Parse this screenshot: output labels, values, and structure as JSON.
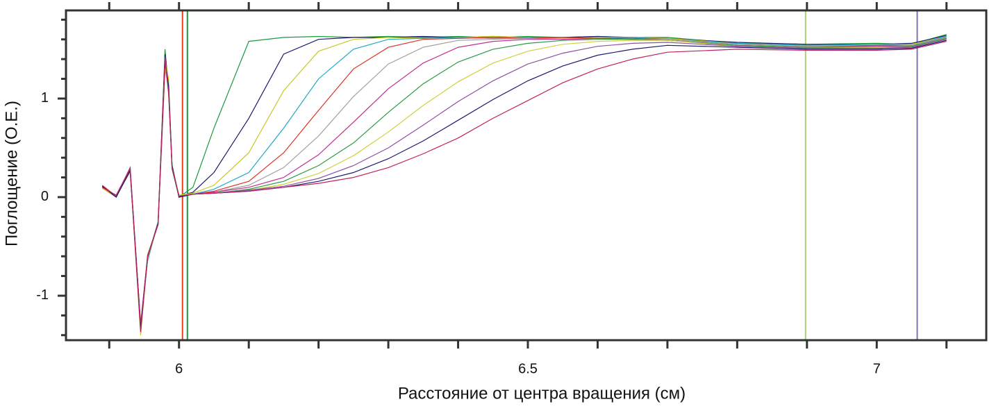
{
  "chart_data": {
    "type": "line",
    "x_label": "Расстояние от центра вращения (см)",
    "y_label": "Поглощение (О.Е.)",
    "x": [
      5.89,
      5.91,
      5.93,
      5.945,
      5.955,
      5.97,
      5.98,
      5.985,
      5.99,
      6.0,
      6.02,
      6.05,
      6.1,
      6.15,
      6.2,
      6.25,
      6.3,
      6.35,
      6.4,
      6.45,
      6.5,
      6.55,
      6.6,
      6.65,
      6.7,
      6.8,
      6.9,
      7.0,
      7.05,
      7.1
    ],
    "series": [
      {
        "color": "#1a9a3a",
        "values": [
          0.1,
          0.02,
          0.28,
          -1.35,
          -0.6,
          -0.27,
          1.5,
          1.1,
          0.3,
          0.0,
          0.1,
          0.7,
          1.58,
          1.62,
          1.63,
          1.62,
          1.63,
          1.62,
          1.63,
          1.62,
          1.63,
          1.62,
          1.63,
          1.62,
          1.62,
          1.56,
          1.55,
          1.56,
          1.55,
          1.65
        ]
      },
      {
        "color": "#1a1a6e",
        "values": [
          0.11,
          0.01,
          0.3,
          -1.3,
          -0.62,
          -0.26,
          1.45,
          1.15,
          0.32,
          0.01,
          0.05,
          0.25,
          0.8,
          1.45,
          1.6,
          1.62,
          1.62,
          1.63,
          1.62,
          1.63,
          1.62,
          1.62,
          1.63,
          1.62,
          1.61,
          1.57,
          1.55,
          1.55,
          1.56,
          1.64
        ]
      },
      {
        "color": "#c8c820",
        "values": [
          0.09,
          0.0,
          0.27,
          -1.4,
          -0.58,
          -0.28,
          1.4,
          1.2,
          0.28,
          0.02,
          0.04,
          0.12,
          0.45,
          1.08,
          1.48,
          1.6,
          1.62,
          1.61,
          1.62,
          1.63,
          1.62,
          1.61,
          1.62,
          1.62,
          1.61,
          1.56,
          1.54,
          1.55,
          1.55,
          1.63
        ]
      },
      {
        "color": "#20a8c8",
        "values": [
          0.1,
          0.02,
          0.29,
          -1.32,
          -0.65,
          -0.25,
          1.35,
          1.05,
          0.33,
          0.0,
          0.03,
          0.08,
          0.25,
          0.7,
          1.2,
          1.5,
          1.6,
          1.61,
          1.62,
          1.61,
          1.62,
          1.62,
          1.61,
          1.62,
          1.6,
          1.56,
          1.54,
          1.55,
          1.54,
          1.63
        ]
      },
      {
        "color": "#e03020",
        "values": [
          0.12,
          0.01,
          0.26,
          -1.28,
          -0.6,
          -0.27,
          1.3,
          1.12,
          0.29,
          0.01,
          0.03,
          0.06,
          0.16,
          0.45,
          0.88,
          1.3,
          1.52,
          1.6,
          1.61,
          1.62,
          1.61,
          1.62,
          1.61,
          1.61,
          1.6,
          1.55,
          1.53,
          1.54,
          1.54,
          1.62
        ]
      },
      {
        "color": "#a0a0a0",
        "values": [
          0.1,
          0.02,
          0.28,
          -1.36,
          -0.63,
          -0.26,
          1.38,
          1.08,
          0.31,
          0.02,
          0.03,
          0.05,
          0.12,
          0.3,
          0.62,
          1.02,
          1.35,
          1.52,
          1.59,
          1.6,
          1.61,
          1.6,
          1.61,
          1.6,
          1.6,
          1.55,
          1.53,
          1.53,
          1.54,
          1.62
        ]
      },
      {
        "color": "#c03090",
        "values": [
          0.11,
          0.0,
          0.3,
          -1.3,
          -0.59,
          -0.28,
          1.42,
          1.1,
          0.3,
          0.01,
          0.03,
          0.05,
          0.1,
          0.2,
          0.43,
          0.76,
          1.1,
          1.36,
          1.52,
          1.58,
          1.6,
          1.6,
          1.61,
          1.6,
          1.59,
          1.54,
          1.52,
          1.53,
          1.53,
          1.61
        ]
      },
      {
        "color": "#2a9a40",
        "values": [
          0.1,
          0.01,
          0.27,
          -1.33,
          -0.61,
          -0.25,
          1.36,
          1.14,
          0.29,
          0.0,
          0.03,
          0.04,
          0.08,
          0.16,
          0.32,
          0.55,
          0.86,
          1.15,
          1.37,
          1.5,
          1.56,
          1.59,
          1.6,
          1.6,
          1.59,
          1.54,
          1.52,
          1.52,
          1.53,
          1.61
        ]
      },
      {
        "color": "#d0d040",
        "values": [
          0.09,
          0.02,
          0.29,
          -1.38,
          -0.62,
          -0.27,
          1.33,
          1.09,
          0.31,
          0.02,
          0.03,
          0.04,
          0.07,
          0.13,
          0.24,
          0.42,
          0.66,
          0.93,
          1.17,
          1.36,
          1.48,
          1.55,
          1.58,
          1.59,
          1.59,
          1.53,
          1.51,
          1.52,
          1.52,
          1.6
        ]
      },
      {
        "color": "#9050a0",
        "values": [
          0.1,
          0.01,
          0.28,
          -1.31,
          -0.6,
          -0.26,
          1.4,
          1.11,
          0.3,
          0.01,
          0.03,
          0.04,
          0.07,
          0.11,
          0.19,
          0.32,
          0.5,
          0.73,
          0.97,
          1.18,
          1.35,
          1.46,
          1.53,
          1.56,
          1.57,
          1.53,
          1.51,
          1.51,
          1.52,
          1.6
        ]
      },
      {
        "color": "#1a1a6e",
        "values": [
          0.11,
          0.0,
          0.27,
          -1.34,
          -0.61,
          -0.27,
          1.37,
          1.13,
          0.32,
          0.0,
          0.03,
          0.04,
          0.06,
          0.1,
          0.16,
          0.25,
          0.39,
          0.57,
          0.78,
          0.99,
          1.18,
          1.33,
          1.44,
          1.5,
          1.54,
          1.52,
          1.5,
          1.5,
          1.51,
          1.59
        ]
      },
      {
        "color": "#c02060",
        "values": [
          0.1,
          0.02,
          0.29,
          -1.37,
          -0.6,
          -0.28,
          1.39,
          1.07,
          0.3,
          0.01,
          0.03,
          0.04,
          0.06,
          0.1,
          0.14,
          0.2,
          0.3,
          0.44,
          0.6,
          0.8,
          0.98,
          1.16,
          1.3,
          1.4,
          1.47,
          1.5,
          1.49,
          1.49,
          1.5,
          1.58
        ]
      }
    ],
    "vlines": [
      {
        "x": 6.005,
        "color": "#e04020"
      },
      {
        "x": 6.012,
        "color": "#1a9a3a"
      },
      {
        "x": 6.898,
        "color": "#a8d070"
      },
      {
        "x": 7.058,
        "color": "#8070b0"
      }
    ],
    "xlim": [
      5.838,
      7.157
    ],
    "ylim": [
      -1.451,
      1.894
    ],
    "xticks": [
      6,
      6.5,
      7
    ],
    "yticks": [
      -1,
      0,
      1
    ],
    "x_minor_ticks": [
      5.9,
      6.1,
      6.2,
      6.3,
      6.4,
      6.6,
      6.7,
      6.8,
      6.9,
      7.1
    ],
    "y_minor_ticks": [
      -1.4,
      -1.2,
      -0.8,
      -0.6,
      -0.4,
      -0.2,
      0.2,
      0.4,
      0.6,
      0.8,
      1.2,
      1.4,
      1.6,
      1.8
    ]
  }
}
